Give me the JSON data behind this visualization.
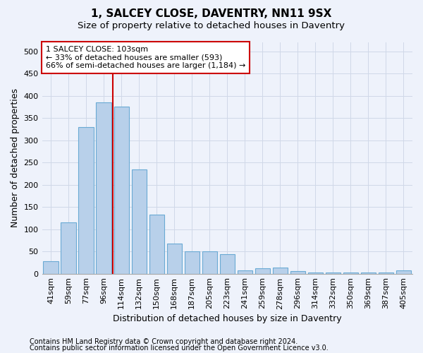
{
  "title": "1, SALCEY CLOSE, DAVENTRY, NN11 9SX",
  "subtitle": "Size of property relative to detached houses in Daventry",
  "xlabel": "Distribution of detached houses by size in Daventry",
  "ylabel": "Number of detached properties",
  "categories": [
    "41sqm",
    "59sqm",
    "77sqm",
    "96sqm",
    "114sqm",
    "132sqm",
    "150sqm",
    "168sqm",
    "187sqm",
    "205sqm",
    "223sqm",
    "241sqm",
    "259sqm",
    "278sqm",
    "296sqm",
    "314sqm",
    "332sqm",
    "350sqm",
    "369sqm",
    "387sqm",
    "405sqm"
  ],
  "values": [
    28,
    115,
    330,
    385,
    375,
    235,
    133,
    68,
    50,
    50,
    44,
    7,
    12,
    13,
    5,
    2,
    2,
    2,
    2,
    2,
    7
  ],
  "bar_color": "#b8d0ea",
  "bar_edge_color": "#6aaad4",
  "marker_bin_index": 3,
  "marker_color": "#cc0000",
  "annotation_line1": "1 SALCEY CLOSE: 103sqm",
  "annotation_line2": "← 33% of detached houses are smaller (593)",
  "annotation_line3": "66% of semi-detached houses are larger (1,184) →",
  "annotation_box_color": "#ffffff",
  "annotation_box_edge": "#cc0000",
  "ylim": [
    0,
    520
  ],
  "yticks": [
    0,
    50,
    100,
    150,
    200,
    250,
    300,
    350,
    400,
    450,
    500
  ],
  "footer_line1": "Contains HM Land Registry data © Crown copyright and database right 2024.",
  "footer_line2": "Contains public sector information licensed under the Open Government Licence v3.0.",
  "background_color": "#eef2fb",
  "plot_background": "#eef2fb",
  "grid_color": "#d0d8e8",
  "title_fontsize": 11,
  "subtitle_fontsize": 9.5,
  "axis_label_fontsize": 9,
  "tick_fontsize": 8,
  "footer_fontsize": 7
}
